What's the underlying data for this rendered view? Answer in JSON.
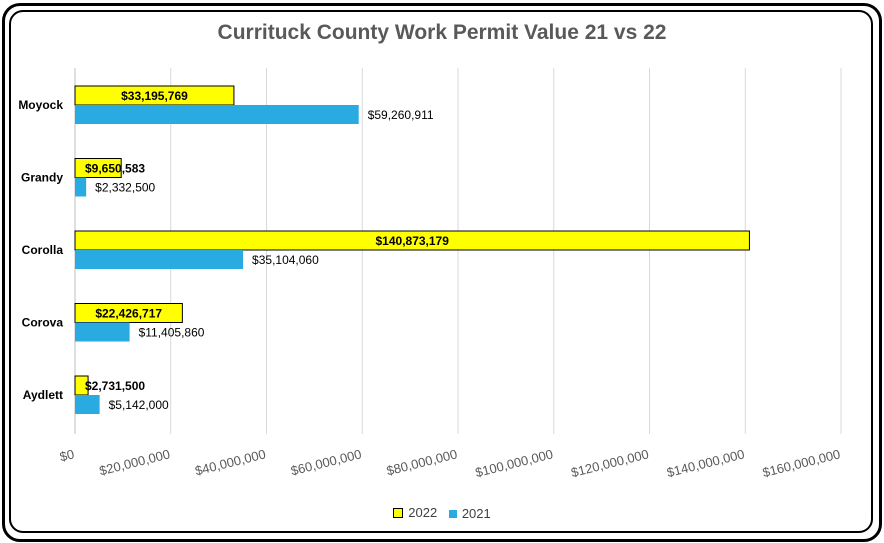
{
  "chart_data": {
    "type": "bar",
    "orientation": "horizontal",
    "title": "Currituck County Work Permit Value 21 vs 22",
    "categories": [
      "Moyock",
      "Grandy",
      "Corolla",
      "Corova",
      "Aydlett"
    ],
    "series": [
      {
        "name": "2022",
        "color": "#ffff00",
        "values": [
          33195769,
          9650583,
          140873179,
          22426717,
          2731500
        ],
        "labels": [
          "$33,195,769",
          "$9,650,583",
          "$140,873,179",
          "$22,426,717",
          "$2,731,500"
        ]
      },
      {
        "name": "2021",
        "color": "#29abe2",
        "values": [
          59260911,
          2332500,
          35104060,
          11405860,
          5142000
        ],
        "labels": [
          "$59,260,911",
          "$2,332,500",
          "$35,104,060",
          "$11,405,860",
          "$5,142,000"
        ]
      }
    ],
    "x_ticks": [
      "$0",
      "$20,000,000",
      "$40,000,000",
      "$60,000,000",
      "$80,000,000",
      "$100,000,000",
      "$120,000,000",
      "$140,000,000",
      "$160,000,000"
    ],
    "xlim": [
      0,
      160000000
    ],
    "grid": true,
    "legend_position": "bottom"
  }
}
